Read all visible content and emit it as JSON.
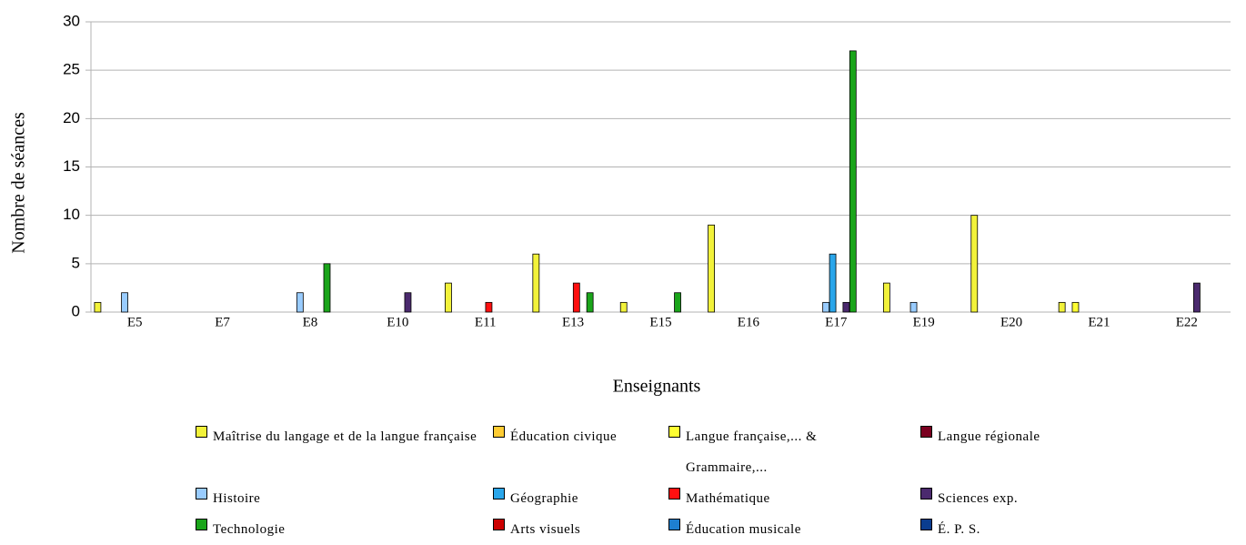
{
  "chart_data": {
    "type": "bar",
    "categories": [
      "E5",
      "E7",
      "E8",
      "E10",
      "E11",
      "E13",
      "E15",
      "E16",
      "E17",
      "E19",
      "E20",
      "E21",
      "E22"
    ],
    "series": [
      {
        "name": "Maîtrise du langage et de la langue française",
        "color": "#f2f23a",
        "values": [
          1,
          0,
          0,
          0,
          3,
          6,
          1,
          9,
          0,
          3,
          10,
          1,
          0
        ]
      },
      {
        "name": "Éducation civique",
        "color": "#ffcc33",
        "values": [
          0,
          0,
          0,
          0,
          0,
          0,
          0,
          0,
          0,
          0,
          0,
          0,
          0
        ]
      },
      {
        "name": "Langue française,...  & Grammaire,...",
        "color": "#ffff33",
        "values": [
          0,
          0,
          0,
          0,
          0,
          0,
          0,
          0,
          0,
          0,
          0,
          1,
          0
        ]
      },
      {
        "name": "Langue régionale",
        "color": "#7a0020",
        "values": [
          0,
          0,
          0,
          0,
          0,
          0,
          0,
          0,
          0,
          0,
          0,
          0,
          0
        ]
      },
      {
        "name": "Histoire",
        "color": "#99ccff",
        "values": [
          2,
          0,
          2,
          0,
          0,
          0,
          0,
          0,
          1,
          1,
          0,
          0,
          0
        ]
      },
      {
        "name": "Géographie",
        "color": "#2aa6ea",
        "values": [
          0,
          0,
          0,
          0,
          0,
          0,
          0,
          0,
          6,
          0,
          0,
          0,
          0
        ]
      },
      {
        "name": "Mathématique",
        "color": "#ff1010",
        "values": [
          0,
          0,
          0,
          0,
          1,
          3,
          0,
          0,
          0,
          0,
          0,
          0,
          0
        ]
      },
      {
        "name": "Sciences  exp.",
        "color": "#4b2a6e",
        "values": [
          0,
          0,
          0,
          2,
          0,
          0,
          0,
          0,
          1,
          0,
          0,
          0,
          3
        ]
      },
      {
        "name": "Technologie",
        "color": "#1aa51a",
        "values": [
          0,
          0,
          5,
          0,
          0,
          2,
          2,
          0,
          27,
          0,
          0,
          0,
          0
        ]
      },
      {
        "name": "Arts visuels",
        "color": "#cc0000",
        "values": [
          0,
          0,
          0,
          0,
          0,
          0,
          0,
          0,
          0,
          0,
          0,
          0,
          0
        ]
      },
      {
        "name": "Éducation musicale",
        "color": "#1e7fd0",
        "values": [
          0,
          0,
          0,
          0,
          0,
          0,
          0,
          0,
          0,
          0,
          0,
          0,
          0
        ]
      },
      {
        "name": "É. P. S.",
        "color": "#0a3d8f",
        "values": [
          0,
          0,
          0,
          0,
          0,
          0,
          0,
          0,
          0,
          0,
          0,
          0,
          0
        ]
      }
    ],
    "x_label": "Enseignants",
    "y_label": "Nombre de séances",
    "ylim": [
      0,
      30
    ],
    "yticks": [
      0,
      5,
      10,
      15,
      20,
      25,
      30
    ],
    "grid": true
  }
}
